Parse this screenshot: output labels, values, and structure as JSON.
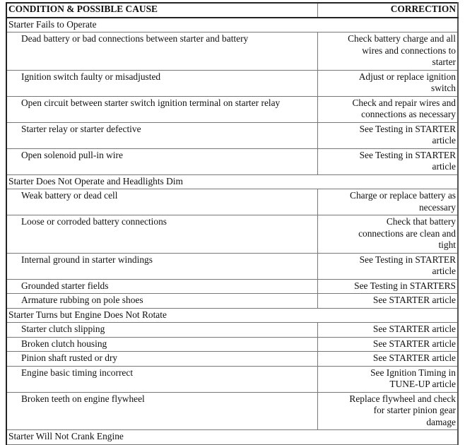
{
  "header": {
    "condition": "CONDITION & POSSIBLE CAUSE",
    "correction": "CORRECTION"
  },
  "sections": [
    {
      "title": "Starter Fails to Operate",
      "rows": [
        {
          "cause": "Dead battery or bad connections between starter and battery",
          "correction": "Check battery charge and all\nwires and connections to\nstarter"
        },
        {
          "cause": "Ignition switch faulty or misadjusted",
          "correction": "Adjust or replace ignition\nswitch"
        },
        {
          "cause": "Open circuit between starter switch ignition terminal on starter relay",
          "correction": "Check and repair wires and\nconnections as necessary"
        },
        {
          "cause": "Starter relay or starter defective",
          "correction": "See Testing in STARTER\narticle"
        },
        {
          "cause": "Open solenoid pull-in wire",
          "correction": "See Testing in STARTER\narticle"
        }
      ]
    },
    {
      "title": "Starter Does Not Operate and Headlights Dim",
      "rows": [
        {
          "cause": "Weak battery or dead cell",
          "correction": "Charge or replace battery as\nnecessary"
        },
        {
          "cause": "Loose or corroded battery connections",
          "correction": "Check that battery\nconnections are clean and\ntight"
        },
        {
          "cause": "Internal ground in starter windings",
          "correction": "See Testing in STARTER\narticle"
        },
        {
          "cause": "Grounded starter fields",
          "correction": "See Testing in STARTERS"
        },
        {
          "cause": "Armature rubbing on pole shoes",
          "correction": "See STARTER article"
        }
      ]
    },
    {
      "title": "Starter Turns but Engine Does Not Rotate",
      "rows": [
        {
          "cause": "Starter clutch slipping",
          "correction": "See STARTER article"
        },
        {
          "cause": "Broken clutch housing",
          "correction": "See STARTER article"
        },
        {
          "cause": "Pinion shaft rusted or dry",
          "correction": "See STARTER article"
        },
        {
          "cause": "Engine basic timing incorrect",
          "correction": "See Ignition Timing in\nTUNE-UP article"
        },
        {
          "cause": "Broken teeth on engine flywheel",
          "correction": "Replace flywheel and check\nfor starter pinion gear\ndamage"
        }
      ]
    },
    {
      "title": "Starter Will Not Crank Engine",
      "rows": []
    }
  ]
}
